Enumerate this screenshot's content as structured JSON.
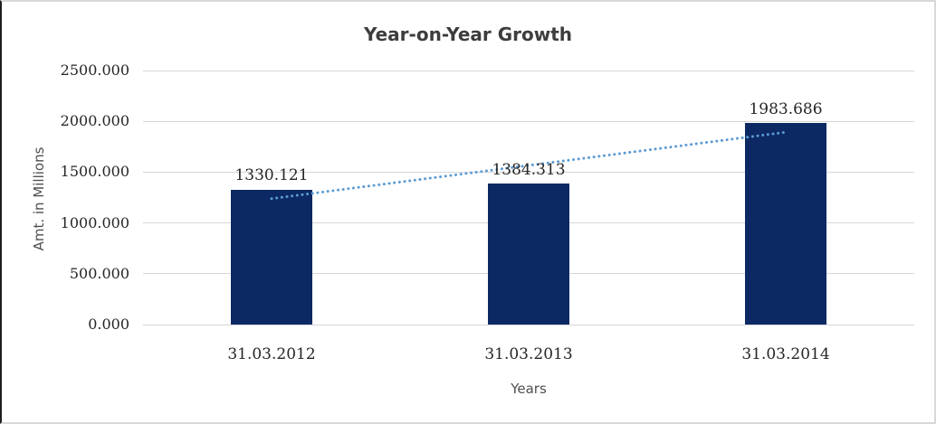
{
  "chart_data": {
    "type": "bar",
    "title": "Year-on-Year Growth",
    "categories": [
      "31.03.2012",
      "31.03.2013",
      "31.03.2014"
    ],
    "values": [
      1330.121,
      1384.313,
      1983.686
    ],
    "data_labels": [
      "1330.121",
      "1384.313",
      "1983.686"
    ],
    "xlabel": "Years",
    "ylabel": "Amt. in Millions",
    "ylim": [
      0,
      2500
    ],
    "ytick_step": 500,
    "ytick_labels": [
      "0.000",
      "500.000",
      "1000.000",
      "1500.000",
      "2000.000",
      "2500.000"
    ],
    "grid": true,
    "legend": "none",
    "trendline": {
      "type": "linear",
      "style": "dotted"
    },
    "colors": {
      "bar_fill": "#0d2963",
      "trendline": "#5b9bd5",
      "gridline": "#d6d6d6",
      "title_text": "#3d3d3d",
      "tick_text": "#262626",
      "axis_title_text": "#4f4f4f"
    }
  }
}
